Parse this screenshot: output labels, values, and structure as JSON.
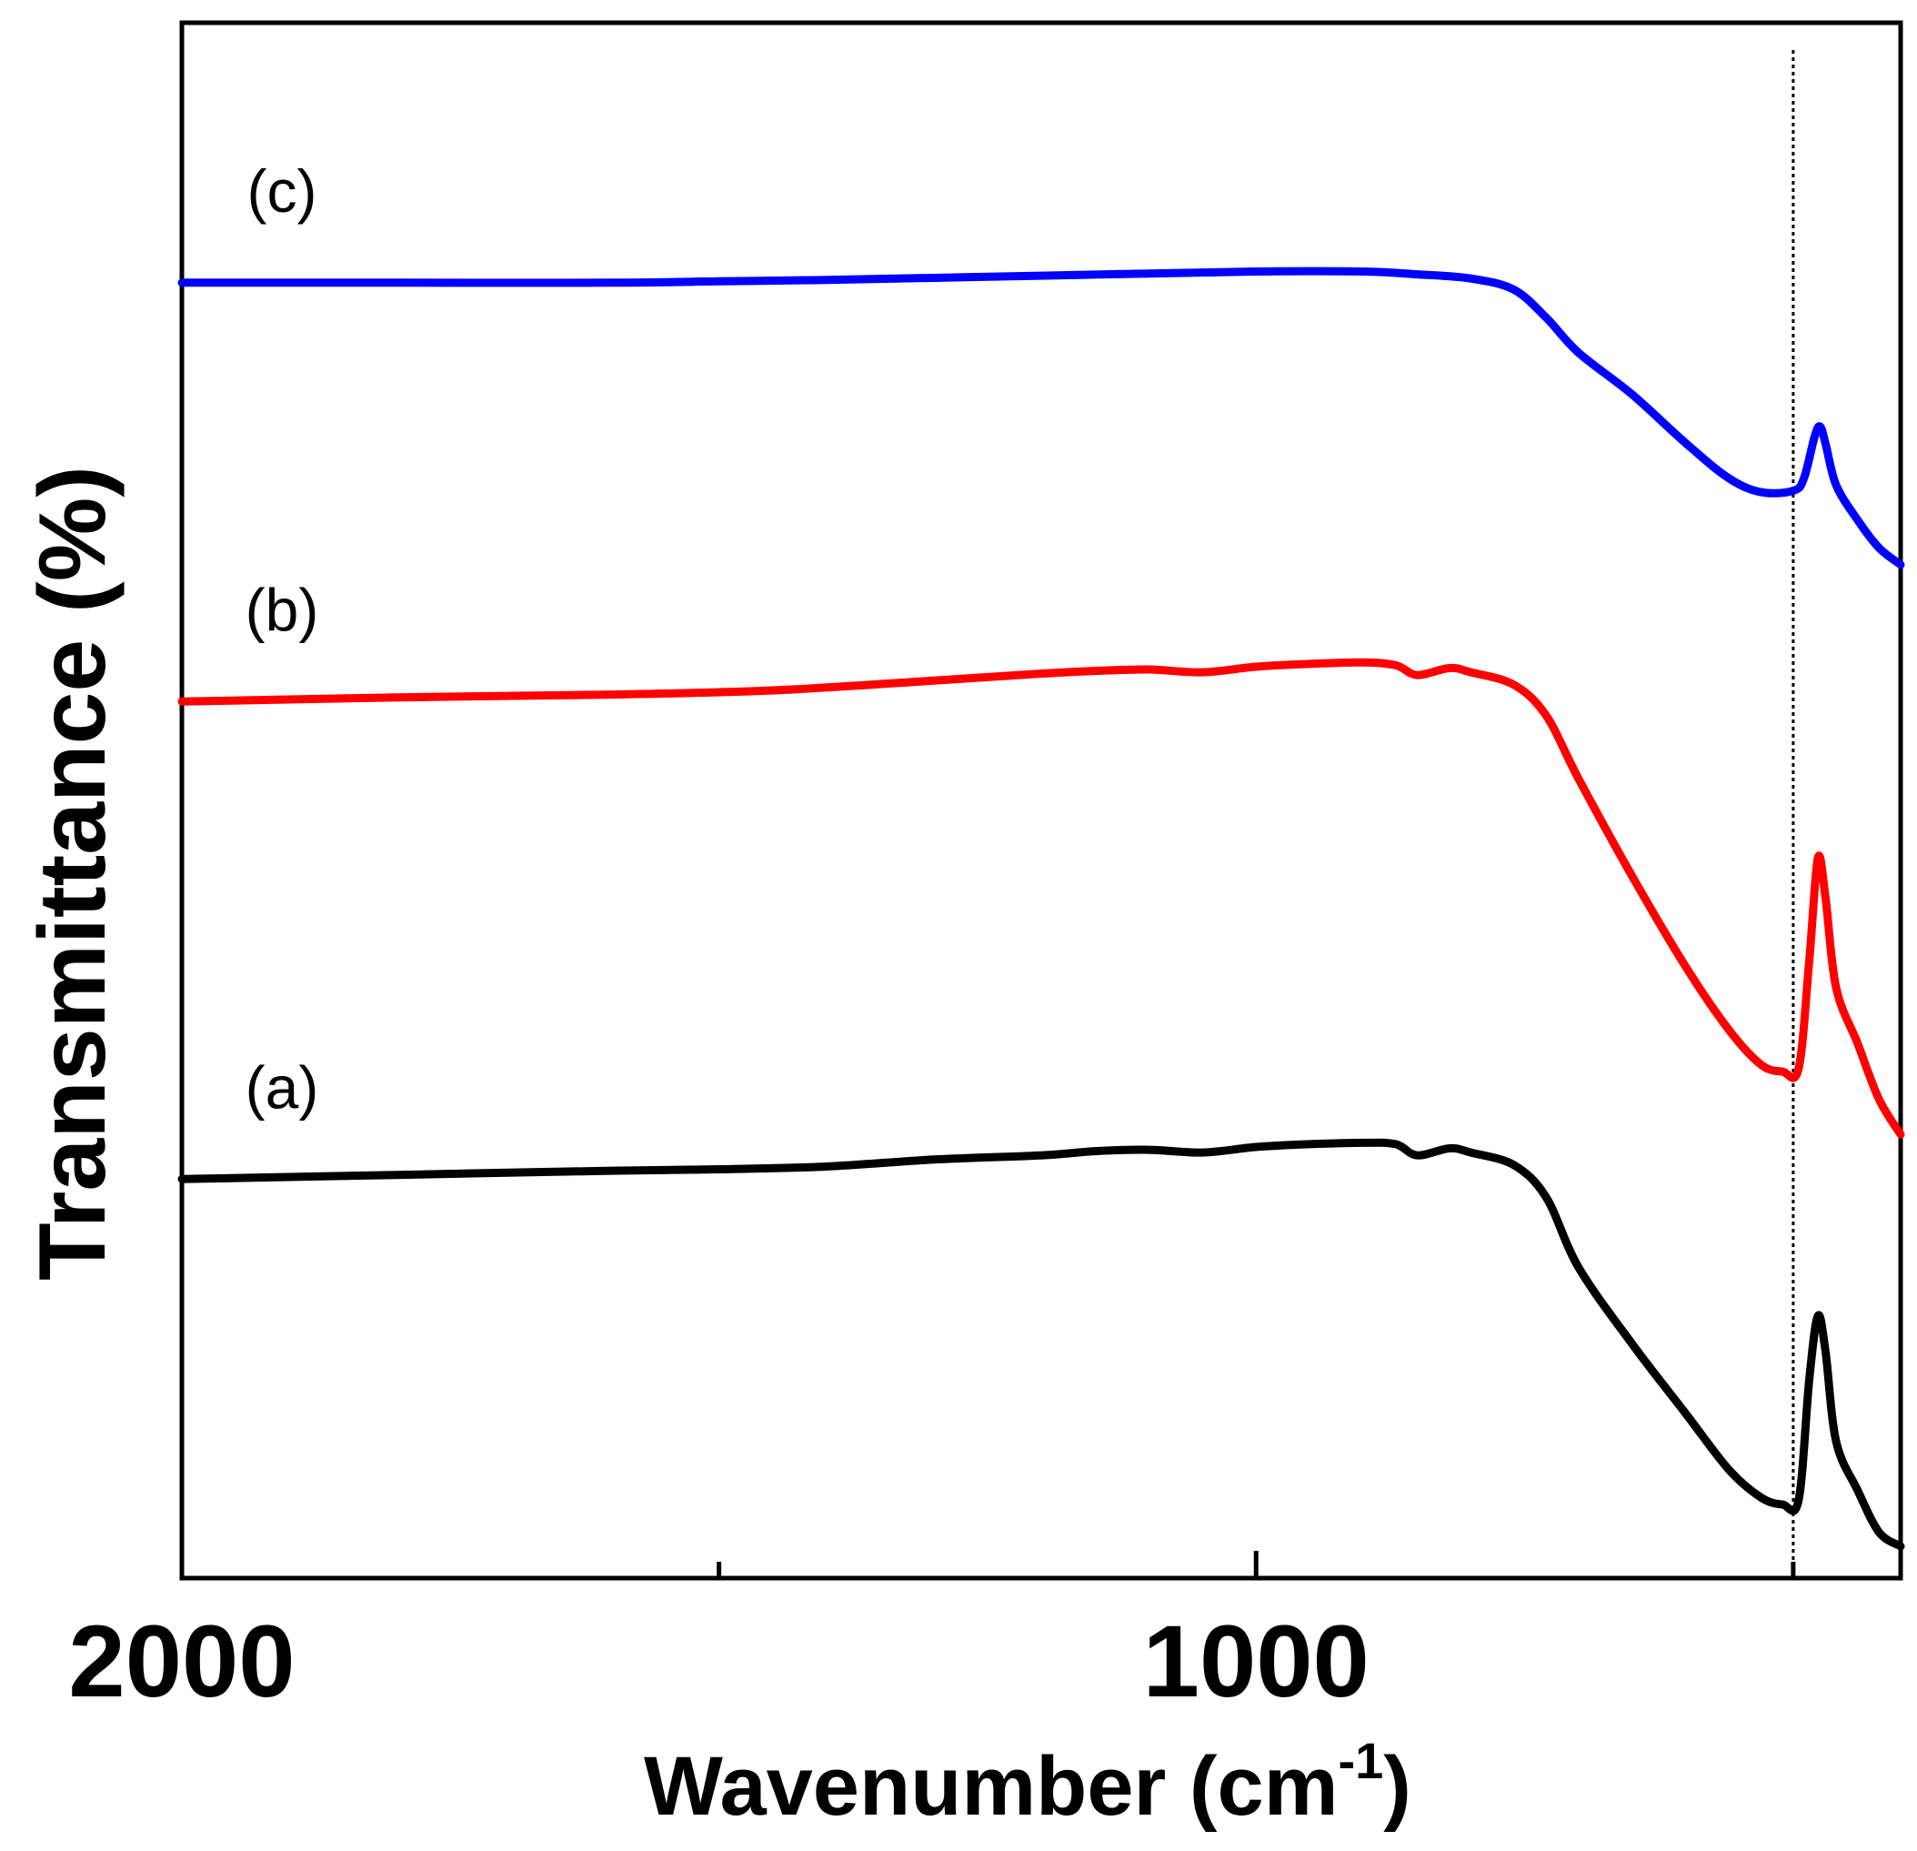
{
  "chart_data": {
    "type": "line",
    "title": "",
    "xlabel": "Wavenumber (cm",
    "xlabel_sup": "-1",
    "xlabel_close": ")",
    "ylabel": "Transmittance (%)",
    "xlim": [
      2000,
      400
    ],
    "x_reversed": true,
    "ylim": [
      0,
      100
    ],
    "x_ticks_major": [
      2000,
      1000
    ],
    "x_ticks_minor": [
      1500,
      500
    ],
    "x_tick_labels": [
      "2000",
      "1000"
    ],
    "grid": false,
    "legend": "none",
    "reference_line": {
      "x": 500,
      "style": "dotted",
      "color": "#000000"
    },
    "series": [
      {
        "name": "(a)",
        "color": "#000000",
        "points": [
          [
            2000,
            26.3
          ],
          [
            1800,
            26.6
          ],
          [
            1600,
            26.9
          ],
          [
            1500,
            27.0
          ],
          [
            1400,
            27.2
          ],
          [
            1300,
            27.7
          ],
          [
            1200,
            28.0
          ],
          [
            1150,
            28.3
          ],
          [
            1100,
            28.4
          ],
          [
            1050,
            28.2
          ],
          [
            1000,
            28.6
          ],
          [
            950,
            28.8
          ],
          [
            900,
            28.9
          ],
          [
            870,
            28.8
          ],
          [
            850,
            28.0
          ],
          [
            820,
            28.5
          ],
          [
            800,
            28.2
          ],
          [
            760,
            27.3
          ],
          [
            730,
            25.0
          ],
          [
            700,
            20.0
          ],
          [
            650,
            14.5
          ],
          [
            600,
            9.5
          ],
          [
            560,
            5.5
          ],
          [
            530,
            3.5
          ],
          [
            510,
            3.0
          ],
          [
            495,
            3.3
          ],
          [
            485,
            12.0
          ],
          [
            477,
            16.5
          ],
          [
            470,
            14.0
          ],
          [
            460,
            7.5
          ],
          [
            440,
            4.0
          ],
          [
            420,
            1.0
          ],
          [
            400,
            0.0
          ]
        ]
      },
      {
        "name": "(b)",
        "color": "#ff0000",
        "points": [
          [
            2000,
            60.5
          ],
          [
            1800,
            60.8
          ],
          [
            1600,
            61.0
          ],
          [
            1450,
            61.3
          ],
          [
            1300,
            62.0
          ],
          [
            1200,
            62.5
          ],
          [
            1150,
            62.7
          ],
          [
            1100,
            62.8
          ],
          [
            1050,
            62.6
          ],
          [
            1000,
            63.0
          ],
          [
            950,
            63.2
          ],
          [
            900,
            63.3
          ],
          [
            870,
            63.1
          ],
          [
            850,
            62.4
          ],
          [
            820,
            62.9
          ],
          [
            800,
            62.6
          ],
          [
            760,
            61.7
          ],
          [
            730,
            59.5
          ],
          [
            700,
            55.0
          ],
          [
            650,
            48.0
          ],
          [
            600,
            41.5
          ],
          [
            560,
            37.0
          ],
          [
            530,
            34.5
          ],
          [
            510,
            34.0
          ],
          [
            495,
            34.2
          ],
          [
            485,
            42.0
          ],
          [
            477,
            49.3
          ],
          [
            470,
            46.5
          ],
          [
            460,
            40.0
          ],
          [
            440,
            36.0
          ],
          [
            420,
            32.0
          ],
          [
            400,
            29.5
          ]
        ]
      },
      {
        "name": "(c)",
        "color": "#0000ff",
        "points": [
          [
            2000,
            90.5
          ],
          [
            1800,
            90.5
          ],
          [
            1600,
            90.5
          ],
          [
            1500,
            90.6
          ],
          [
            1400,
            90.7
          ],
          [
            1200,
            91.0
          ],
          [
            1000,
            91.3
          ],
          [
            900,
            91.3
          ],
          [
            850,
            91.1
          ],
          [
            800,
            90.8
          ],
          [
            760,
            90.0
          ],
          [
            730,
            88.0
          ],
          [
            700,
            85.5
          ],
          [
            650,
            82.5
          ],
          [
            600,
            79.0
          ],
          [
            560,
            76.5
          ],
          [
            530,
            75.5
          ],
          [
            500,
            75.6
          ],
          [
            490,
            76.5
          ],
          [
            480,
            79.5
          ],
          [
            475,
            80.2
          ],
          [
            470,
            79.0
          ],
          [
            460,
            76.0
          ],
          [
            440,
            73.5
          ],
          [
            420,
            71.5
          ],
          [
            400,
            70.3
          ]
        ]
      }
    ]
  }
}
